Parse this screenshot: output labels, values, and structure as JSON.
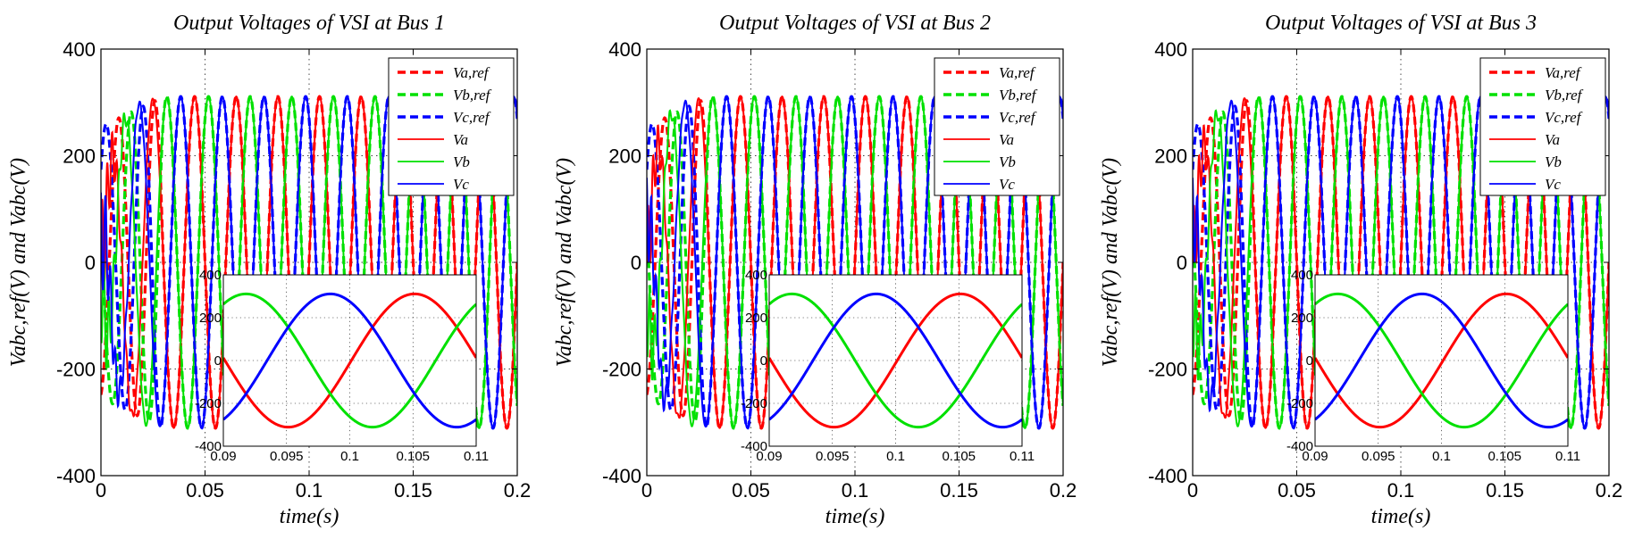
{
  "chart_data": [
    {
      "type": "line",
      "title": "Output Voltages of VSI at Bus 1",
      "xlabel": "time(s)",
      "ylabel": "Vabc,ref(V) and Vabc(V)",
      "xlim": [
        0,
        0.2
      ],
      "ylim": [
        -400,
        400
      ],
      "xticks": [
        "0",
        "0.05",
        "0.1",
        "0.15",
        "0.2"
      ],
      "yticks": [
        "400",
        "200",
        "0",
        "-200",
        "-400"
      ],
      "grid": true,
      "legend_position": "top-right",
      "frequency_hz": 50,
      "amplitude_v": 311,
      "settle_time_s": 0.03,
      "series": [
        {
          "name": "Va,ref",
          "color": "#ff0000",
          "style": "dashed",
          "phase_deg": 0
        },
        {
          "name": "Vb,ref",
          "color": "#00e000",
          "style": "dashed",
          "phase_deg": -120
        },
        {
          "name": "Vc,ref",
          "color": "#0000ff",
          "style": "dashed",
          "phase_deg": 120
        },
        {
          "name": "Va",
          "color": "#ff0000",
          "style": "solid",
          "phase_deg": 0
        },
        {
          "name": "Vb",
          "color": "#00e000",
          "style": "solid",
          "phase_deg": -120
        },
        {
          "name": "Vc",
          "color": "#0000ff",
          "style": "solid",
          "phase_deg": 120
        }
      ],
      "inset": {
        "xlim": [
          0.09,
          0.11
        ],
        "ylim": [
          -400,
          400
        ],
        "xticks": [
          "0.09",
          "0.095",
          "0.1",
          "0.105",
          "0.11"
        ],
        "yticks": [
          "400",
          "200",
          "0",
          "-200",
          "-400"
        ]
      }
    },
    {
      "type": "line",
      "title": "Output Voltages of VSI at Bus 2",
      "xlabel": "time(s)",
      "ylabel": "Vabc,ref(V) and Vabc(V)",
      "xlim": [
        0,
        0.2
      ],
      "ylim": [
        -400,
        400
      ],
      "xticks": [
        "0",
        "0.05",
        "0.1",
        "0.15",
        "0.2"
      ],
      "yticks": [
        "400",
        "200",
        "0",
        "-200",
        "-400"
      ],
      "grid": true,
      "legend_position": "top-right",
      "frequency_hz": 50,
      "amplitude_v": 311,
      "settle_time_s": 0.03,
      "series": [
        {
          "name": "Va,ref",
          "color": "#ff0000",
          "style": "dashed",
          "phase_deg": 0
        },
        {
          "name": "Vb,ref",
          "color": "#00e000",
          "style": "dashed",
          "phase_deg": -120
        },
        {
          "name": "Vc,ref",
          "color": "#0000ff",
          "style": "dashed",
          "phase_deg": 120
        },
        {
          "name": "Va",
          "color": "#ff0000",
          "style": "solid",
          "phase_deg": 0
        },
        {
          "name": "Vb",
          "color": "#00e000",
          "style": "solid",
          "phase_deg": -120
        },
        {
          "name": "Vc",
          "color": "#0000ff",
          "style": "solid",
          "phase_deg": 120
        }
      ],
      "inset": {
        "xlim": [
          0.09,
          0.11
        ],
        "ylim": [
          -400,
          400
        ],
        "xticks": [
          "0.09",
          "0.095",
          "0.1",
          "0.105",
          "0.11"
        ],
        "yticks": [
          "400",
          "200",
          "0",
          "-200",
          "-400"
        ]
      }
    },
    {
      "type": "line",
      "title": "Output Voltages of VSI at Bus 3",
      "xlabel": "time(s)",
      "ylabel": "Vabc,ref(V) and Vabc(V)",
      "xlim": [
        0,
        0.2
      ],
      "ylim": [
        -400,
        400
      ],
      "xticks": [
        "0",
        "0.05",
        "0.1",
        "0.15",
        "0.2"
      ],
      "yticks": [
        "400",
        "200",
        "0",
        "-200",
        "-400"
      ],
      "grid": true,
      "legend_position": "top-right",
      "frequency_hz": 50,
      "amplitude_v": 311,
      "settle_time_s": 0.03,
      "series": [
        {
          "name": "Va,ref",
          "color": "#ff0000",
          "style": "dashed",
          "phase_deg": 0
        },
        {
          "name": "Vb,ref",
          "color": "#00e000",
          "style": "dashed",
          "phase_deg": -120
        },
        {
          "name": "Vc,ref",
          "color": "#0000ff",
          "style": "dashed",
          "phase_deg": 120
        },
        {
          "name": "Va",
          "color": "#ff0000",
          "style": "solid",
          "phase_deg": 0
        },
        {
          "name": "Vb",
          "color": "#00e000",
          "style": "solid",
          "phase_deg": -120
        },
        {
          "name": "Vc",
          "color": "#0000ff",
          "style": "solid",
          "phase_deg": 120
        }
      ],
      "inset": {
        "xlim": [
          0.09,
          0.11
        ],
        "ylim": [
          -400,
          400
        ],
        "xticks": [
          "0.09",
          "0.095",
          "0.1",
          "0.105",
          "0.11"
        ],
        "yticks": [
          "400",
          "200",
          "0",
          "-200",
          "-400"
        ]
      }
    }
  ]
}
